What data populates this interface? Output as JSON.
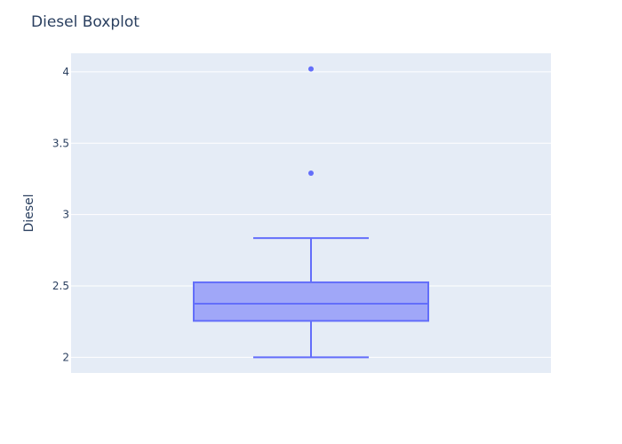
{
  "chart_data": {
    "type": "box",
    "title": "Diesel Boxplot",
    "xlabel": "",
    "ylabel": "Diesel",
    "ylim": [
      1.89,
      4.13
    ],
    "yticks": [
      2,
      2.5,
      3,
      3.5,
      4
    ],
    "ytick_labels": [
      "2",
      "2.5",
      "3",
      "3.5",
      "4"
    ],
    "grid": true,
    "colors": {
      "plot_bg": "#E5ECF6",
      "grid": "#ffffff",
      "box_line": "#636EFA",
      "box_fill": "#A0A7F8",
      "text": "#2a3f5f"
    },
    "box": {
      "lower_whisker": 2.0,
      "q1": 2.255,
      "median": 2.375,
      "q3": 2.525,
      "upper_whisker": 2.835
    },
    "outliers": [
      3.29,
      4.02
    ]
  }
}
